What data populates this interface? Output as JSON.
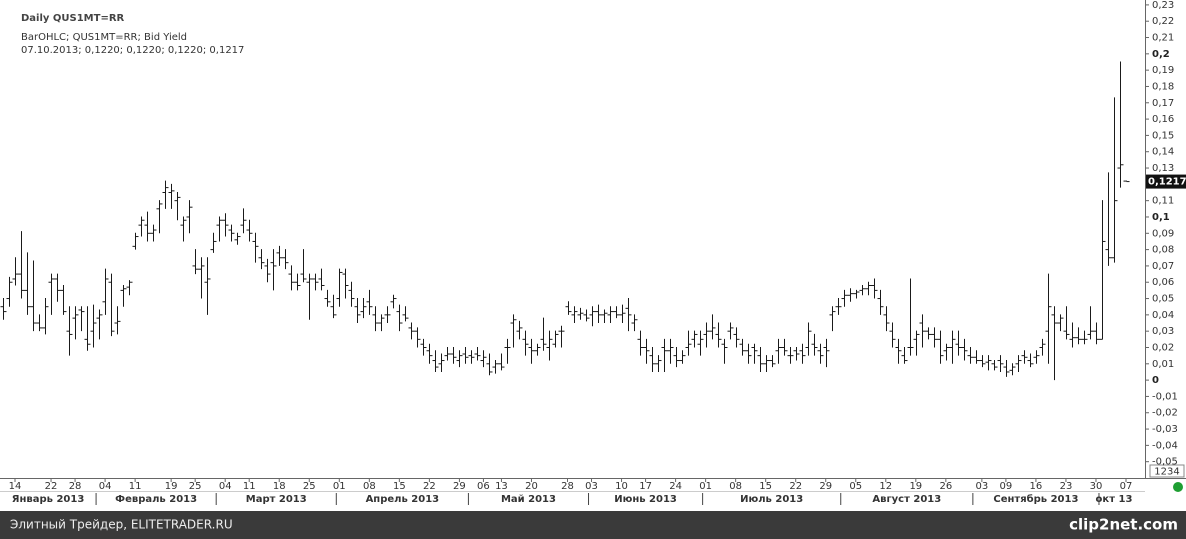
{
  "chart_data": {
    "type": "ohlc",
    "title": "Daily QUS1MT=RR",
    "subtitle": "BarOHLC; QUS1MT=RR; Bid Yield",
    "last_bar_text": "07.10.2013; 0,1220; 0,1220; 0,1220; 0,1217",
    "color": "#1a1a1a",
    "x": [
      "2013-01-10",
      "2013-01-11",
      "2013-01-14",
      "2013-01-15",
      "2013-01-16",
      "2013-01-17",
      "2013-01-18",
      "2013-01-21",
      "2013-01-22",
      "2013-01-23",
      "2013-01-24",
      "2013-01-25",
      "2013-01-28",
      "2013-01-29",
      "2013-01-30",
      "2013-01-31",
      "2013-02-01",
      "2013-02-04",
      "2013-02-05",
      "2013-02-06",
      "2013-02-07",
      "2013-02-08",
      "2013-02-11",
      "2013-02-12",
      "2013-02-13",
      "2013-02-14",
      "2013-02-15",
      "2013-02-18",
      "2013-02-19",
      "2013-02-20",
      "2013-02-21",
      "2013-02-22",
      "2013-02-25",
      "2013-02-26",
      "2013-02-27",
      "2013-02-28",
      "2013-03-01",
      "2013-03-04",
      "2013-03-05",
      "2013-03-06",
      "2013-03-07",
      "2013-03-11",
      "2013-03-12",
      "2013-03-13",
      "2013-03-14",
      "2013-03-15",
      "2013-03-18",
      "2013-03-19",
      "2013-03-20",
      "2013-03-21",
      "2013-03-22",
      "2013-03-25",
      "2013-03-26",
      "2013-03-27",
      "2013-03-28",
      "2013-03-29",
      "2013-04-01",
      "2013-04-02",
      "2013-04-03",
      "2013-04-04",
      "2013-04-05",
      "2013-04-08",
      "2013-04-09",
      "2013-04-10",
      "2013-04-11",
      "2013-04-12",
      "2013-04-15",
      "2013-04-16",
      "2013-04-17",
      "2013-04-18",
      "2013-04-19",
      "2013-04-22",
      "2013-04-23",
      "2013-04-24",
      "2013-04-25",
      "2013-04-26",
      "2013-04-29",
      "2013-04-30",
      "2013-05-02",
      "2013-05-03",
      "2013-05-06",
      "2013-05-07",
      "2013-05-08",
      "2013-05-13",
      "2013-05-14",
      "2013-05-15",
      "2013-05-16",
      "2013-05-17",
      "2013-05-20",
      "2013-05-21",
      "2013-05-22",
      "2013-05-23",
      "2013-05-24",
      "2013-05-27",
      "2013-05-28",
      "2013-05-29",
      "2013-05-30",
      "2013-05-31",
      "2013-06-03",
      "2013-06-04",
      "2013-06-05",
      "2013-06-06",
      "2013-06-07",
      "2013-06-10",
      "2013-06-11",
      "2013-06-13",
      "2013-06-14",
      "2013-06-17",
      "2013-06-18",
      "2013-06-19",
      "2013-06-20",
      "2013-06-21",
      "2013-06-24",
      "2013-06-25",
      "2013-06-26",
      "2013-06-27",
      "2013-06-28",
      "2013-07-01",
      "2013-07-02",
      "2013-07-03",
      "2013-07-04",
      "2013-07-05",
      "2013-07-08",
      "2013-07-09",
      "2013-07-10",
      "2013-07-11",
      "2013-07-12",
      "2013-07-15",
      "2013-07-16",
      "2013-07-17",
      "2013-07-18",
      "2013-07-19",
      "2013-07-22",
      "2013-07-23",
      "2013-07-24",
      "2013-07-25",
      "2013-07-26",
      "2013-07-29",
      "2013-07-30",
      "2013-07-31",
      "2013-08-01",
      "2013-08-02",
      "2013-08-05",
      "2013-08-06",
      "2013-08-07",
      "2013-08-08",
      "2013-08-09",
      "2013-08-12",
      "2013-08-13",
      "2013-08-14",
      "2013-08-15",
      "2013-08-16",
      "2013-08-19",
      "2013-08-20",
      "2013-08-21",
      "2013-08-22",
      "2013-08-23",
      "2013-08-26",
      "2013-08-27",
      "2013-08-28",
      "2013-08-29",
      "2013-08-30",
      "2013-09-02",
      "2013-09-03",
      "2013-09-04",
      "2013-09-05",
      "2013-09-06",
      "2013-09-09",
      "2013-09-10",
      "2013-09-11",
      "2013-09-12",
      "2013-09-13",
      "2013-09-16",
      "2013-09-17",
      "2013-09-18",
      "2013-09-19",
      "2013-09-20",
      "2013-09-23",
      "2013-09-24",
      "2013-09-25",
      "2013-09-26",
      "2013-09-27",
      "2013-09-30",
      "2013-10-01",
      "2013-10-02",
      "2013-10-03",
      "2013-10-04",
      "2013-10-07"
    ],
    "open": [
      0.045,
      0.05,
      0.062,
      0.065,
      0.055,
      0.045,
      0.035,
      0.032,
      0.06,
      0.062,
      0.055,
      0.03,
      0.038,
      0.043,
      0.025,
      0.03,
      0.038,
      0.048,
      0.06,
      0.035,
      0.055,
      0.057,
      0.082,
      0.095,
      0.095,
      0.09,
      0.105,
      0.115,
      0.115,
      0.11,
      0.095,
      0.1,
      0.07,
      0.068,
      0.06,
      0.08,
      0.095,
      0.098,
      0.092,
      0.086,
      0.095,
      0.092,
      0.085,
      0.075,
      0.07,
      0.072,
      0.078,
      0.075,
      0.065,
      0.06,
      0.065,
      0.06,
      0.062,
      0.062,
      0.05,
      0.045,
      0.05,
      0.065,
      0.055,
      0.045,
      0.042,
      0.048,
      0.04,
      0.035,
      0.04,
      0.048,
      0.042,
      0.04,
      0.032,
      0.03,
      0.022,
      0.018,
      0.012,
      0.01,
      0.015,
      0.016,
      0.012,
      0.016,
      0.015,
      0.016,
      0.012,
      0.01,
      0.008,
      0.01,
      0.02,
      0.035,
      0.03,
      0.025,
      0.02,
      0.018,
      0.025,
      0.02,
      0.022,
      0.03,
      0.045,
      0.04,
      0.04,
      0.04,
      0.04,
      0.042,
      0.04,
      0.04,
      0.042,
      0.04,
      0.044,
      0.035,
      0.025,
      0.02,
      0.015,
      0.01,
      0.02,
      0.018,
      0.015,
      0.012,
      0.02,
      0.025,
      0.022,
      0.028,
      0.03,
      0.028,
      0.022,
      0.03,
      0.028,
      0.022,
      0.018,
      0.02,
      0.015,
      0.01,
      0.012,
      0.018,
      0.02,
      0.015,
      0.018,
      0.018,
      0.02,
      0.022,
      0.018,
      0.02,
      0.04,
      0.045,
      0.05,
      0.052,
      0.053,
      0.055,
      0.056,
      0.058,
      0.05,
      0.04,
      0.03,
      0.02,
      0.015,
      0.02,
      0.025,
      0.035,
      0.03,
      0.028,
      0.025,
      0.018,
      0.02,
      0.022,
      0.02,
      0.015,
      0.014,
      0.012,
      0.011,
      0.01,
      0.012,
      0.008,
      0.006,
      0.01,
      0.015,
      0.012,
      0.014,
      0.02,
      0.03,
      0.04,
      0.035,
      0.03,
      0.025,
      0.026,
      0.025,
      0.028,
      0.03,
      0.025,
      0.08,
      0.075,
      0.13,
      0.122
    ],
    "high": [
      0.05,
      0.063,
      0.075,
      0.091,
      0.078,
      0.073,
      0.04,
      0.05,
      0.065,
      0.065,
      0.058,
      0.045,
      0.045,
      0.045,
      0.045,
      0.046,
      0.043,
      0.068,
      0.065,
      0.045,
      0.058,
      0.061,
      0.09,
      0.1,
      0.103,
      0.095,
      0.11,
      0.122,
      0.12,
      0.115,
      0.1,
      0.11,
      0.08,
      0.075,
      0.075,
      0.09,
      0.1,
      0.102,
      0.095,
      0.09,
      0.105,
      0.098,
      0.09,
      0.08,
      0.074,
      0.08,
      0.082,
      0.08,
      0.07,
      0.065,
      0.08,
      0.065,
      0.065,
      0.068,
      0.055,
      0.052,
      0.068,
      0.068,
      0.06,
      0.05,
      0.05,
      0.055,
      0.045,
      0.04,
      0.045,
      0.052,
      0.046,
      0.045,
      0.035,
      0.032,
      0.025,
      0.022,
      0.018,
      0.016,
      0.02,
      0.02,
      0.018,
      0.02,
      0.018,
      0.02,
      0.018,
      0.016,
      0.012,
      0.016,
      0.025,
      0.04,
      0.036,
      0.03,
      0.025,
      0.022,
      0.038,
      0.03,
      0.03,
      0.033,
      0.048,
      0.045,
      0.044,
      0.043,
      0.045,
      0.046,
      0.043,
      0.045,
      0.045,
      0.046,
      0.05,
      0.04,
      0.03,
      0.025,
      0.02,
      0.015,
      0.025,
      0.025,
      0.02,
      0.018,
      0.03,
      0.03,
      0.03,
      0.035,
      0.04,
      0.035,
      0.025,
      0.035,
      0.032,
      0.025,
      0.022,
      0.022,
      0.02,
      0.015,
      0.015,
      0.025,
      0.025,
      0.02,
      0.02,
      0.022,
      0.035,
      0.028,
      0.022,
      0.025,
      0.045,
      0.05,
      0.055,
      0.056,
      0.055,
      0.058,
      0.06,
      0.062,
      0.055,
      0.045,
      0.035,
      0.025,
      0.02,
      0.062,
      0.03,
      0.04,
      0.032,
      0.032,
      0.03,
      0.022,
      0.03,
      0.03,
      0.025,
      0.02,
      0.018,
      0.015,
      0.015,
      0.012,
      0.015,
      0.012,
      0.01,
      0.015,
      0.018,
      0.016,
      0.018,
      0.025,
      0.065,
      0.045,
      0.04,
      0.045,
      0.035,
      0.032,
      0.03,
      0.045,
      0.035,
      0.11,
      0.127,
      0.173,
      0.195,
      0.122
    ],
    "low": [
      0.037,
      0.045,
      0.058,
      0.05,
      0.04,
      0.03,
      0.03,
      0.028,
      0.04,
      0.048,
      0.04,
      0.015,
      0.025,
      0.03,
      0.018,
      0.02,
      0.025,
      0.04,
      0.027,
      0.028,
      0.045,
      0.052,
      0.08,
      0.088,
      0.085,
      0.085,
      0.09,
      0.105,
      0.105,
      0.098,
      0.085,
      0.09,
      0.065,
      0.05,
      0.04,
      0.078,
      0.085,
      0.088,
      0.085,
      0.083,
      0.09,
      0.085,
      0.072,
      0.068,
      0.06,
      0.055,
      0.07,
      0.068,
      0.055,
      0.055,
      0.06,
      0.037,
      0.055,
      0.055,
      0.045,
      0.038,
      0.045,
      0.05,
      0.045,
      0.035,
      0.038,
      0.04,
      0.03,
      0.03,
      0.035,
      0.044,
      0.03,
      0.036,
      0.025,
      0.02,
      0.015,
      0.01,
      0.005,
      0.005,
      0.012,
      0.01,
      0.008,
      0.01,
      0.01,
      0.012,
      0.008,
      0.003,
      0.004,
      0.006,
      0.01,
      0.02,
      0.025,
      0.015,
      0.01,
      0.015,
      0.018,
      0.012,
      0.02,
      0.02,
      0.04,
      0.035,
      0.037,
      0.036,
      0.033,
      0.035,
      0.035,
      0.035,
      0.038,
      0.035,
      0.03,
      0.03,
      0.015,
      0.01,
      0.005,
      0.005,
      0.005,
      0.01,
      0.008,
      0.01,
      0.015,
      0.02,
      0.015,
      0.02,
      0.025,
      0.02,
      0.01,
      0.025,
      0.02,
      0.015,
      0.01,
      0.01,
      0.005,
      0.005,
      0.008,
      0.01,
      0.015,
      0.01,
      0.012,
      0.01,
      0.015,
      0.015,
      0.01,
      0.008,
      0.03,
      0.04,
      0.045,
      0.048,
      0.05,
      0.052,
      0.052,
      0.05,
      0.04,
      0.03,
      0.02,
      0.01,
      0.01,
      0.015,
      0.015,
      0.02,
      0.025,
      0.02,
      0.01,
      0.012,
      0.01,
      0.015,
      0.012,
      0.01,
      0.01,
      0.008,
      0.006,
      0.006,
      0.005,
      0.002,
      0.003,
      0.005,
      0.01,
      0.008,
      0.01,
      0.015,
      0.01,
      0,
      0.03,
      0.025,
      0.02,
      0.022,
      0.022,
      0.025,
      0.022,
      0.025,
      0.07,
      0.072,
      0.118,
      0.122
    ],
    "close": [
      0.042,
      0.06,
      0.065,
      0.055,
      0.045,
      0.035,
      0.032,
      0.045,
      0.062,
      0.055,
      0.042,
      0.028,
      0.04,
      0.042,
      0.022,
      0.035,
      0.04,
      0.062,
      0.03,
      0.036,
      0.056,
      0.06,
      0.088,
      0.098,
      0.09,
      0.092,
      0.108,
      0.118,
      0.116,
      0.112,
      0.098,
      0.106,
      0.068,
      0.07,
      0.062,
      0.085,
      0.098,
      0.095,
      0.09,
      0.088,
      0.098,
      0.09,
      0.082,
      0.072,
      0.065,
      0.07,
      0.075,
      0.072,
      0.06,
      0.058,
      0.062,
      0.062,
      0.06,
      0.058,
      0.048,
      0.04,
      0.066,
      0.058,
      0.05,
      0.04,
      0.045,
      0.045,
      0.035,
      0.038,
      0.04,
      0.05,
      0.035,
      0.038,
      0.03,
      0.025,
      0.02,
      0.015,
      0.008,
      0.012,
      0.016,
      0.014,
      0.015,
      0.014,
      0.014,
      0.015,
      0.014,
      0.005,
      0.01,
      0.008,
      0.02,
      0.037,
      0.032,
      0.022,
      0.018,
      0.02,
      0.022,
      0.025,
      0.028,
      0.03,
      0.042,
      0.042,
      0.041,
      0.038,
      0.042,
      0.04,
      0.041,
      0.042,
      0.04,
      0.041,
      0.04,
      0.037,
      0.02,
      0.018,
      0.01,
      0.012,
      0.018,
      0.02,
      0.012,
      0.015,
      0.022,
      0.028,
      0.025,
      0.03,
      0.032,
      0.025,
      0.02,
      0.032,
      0.025,
      0.018,
      0.015,
      0.018,
      0.01,
      0.012,
      0.01,
      0.02,
      0.018,
      0.015,
      0.016,
      0.015,
      0.03,
      0.02,
      0.015,
      0.018,
      0.042,
      0.045,
      0.052,
      0.053,
      0.054,
      0.056,
      0.058,
      0.055,
      0.045,
      0.035,
      0.025,
      0.018,
      0.012,
      0.02,
      0.028,
      0.03,
      0.028,
      0.025,
      0.015,
      0.02,
      0.025,
      0.02,
      0.018,
      0.014,
      0.012,
      0.01,
      0.012,
      0.008,
      0.01,
      0.005,
      0.008,
      0.012,
      0.014,
      0.01,
      0.015,
      0.022,
      0.045,
      0.035,
      0.038,
      0.028,
      0.026,
      0.025,
      0.025,
      0.03,
      0.025,
      0.085,
      0.075,
      0.11,
      0.132,
      0.1217
    ],
    "ylim": [
      -0.06,
      0.233
    ],
    "yticks": [
      {
        "value": 0.23,
        "label": "0,23"
      },
      {
        "value": 0.22,
        "label": "0,22"
      },
      {
        "value": 0.21,
        "label": "0,21"
      },
      {
        "value": 0.2,
        "label": "0,2"
      },
      {
        "value": 0.19,
        "label": "0,19"
      },
      {
        "value": 0.18,
        "label": "0,18"
      },
      {
        "value": 0.17,
        "label": "0,17"
      },
      {
        "value": 0.16,
        "label": "0,16"
      },
      {
        "value": 0.15,
        "label": "0,15"
      },
      {
        "value": 0.14,
        "label": "0,14"
      },
      {
        "value": 0.13,
        "label": "0,13"
      },
      {
        "value": 0.11,
        "label": "0,11"
      },
      {
        "value": 0.1,
        "label": "0,1"
      },
      {
        "value": 0.09,
        "label": "0,09"
      },
      {
        "value": 0.08,
        "label": "0,08"
      },
      {
        "value": 0.07,
        "label": "0,07"
      },
      {
        "value": 0.06,
        "label": "0,06"
      },
      {
        "value": 0.05,
        "label": "0,05"
      },
      {
        "value": 0.04,
        "label": "0,04"
      },
      {
        "value": 0.03,
        "label": "0,03"
      },
      {
        "value": 0.02,
        "label": "0,02"
      },
      {
        "value": 0.01,
        "label": "0,01"
      },
      0,
      {
        "value": -0.01,
        "label": "-0,01"
      },
      {
        "value": -0.02,
        "label": "-0,02"
      },
      {
        "value": -0.03,
        "label": "-0,03"
      },
      {
        "value": -0.04,
        "label": "-0,04"
      },
      {
        "value": -0.05,
        "label": "-0,05"
      }
    ],
    "bold_ticks": [
      0.2,
      0.1,
      0
    ],
    "last_value": {
      "value": 0.1217,
      "label": "0,1217"
    },
    "xticks": [
      {
        "value": "2013-01-14",
        "label": "14"
      },
      {
        "value": "2013-01-22",
        "label": "22"
      },
      {
        "value": "2013-01-28",
        "label": "28"
      },
      {
        "value": "2013-02-04",
        "label": "04"
      },
      {
        "value": "2013-02-11",
        "label": "11"
      },
      {
        "value": "2013-02-19",
        "label": "19"
      },
      {
        "value": "2013-02-25",
        "label": "25"
      },
      {
        "value": "2013-03-04",
        "label": "04"
      },
      {
        "value": "2013-03-11",
        "label": "11"
      },
      {
        "value": "2013-03-18",
        "label": "18"
      },
      {
        "value": "2013-03-25",
        "label": "25"
      },
      {
        "value": "2013-04-01",
        "label": "01"
      },
      {
        "value": "2013-04-08",
        "label": "08"
      },
      {
        "value": "2013-04-15",
        "label": "15"
      },
      {
        "value": "2013-04-22",
        "label": "22"
      },
      {
        "value": "2013-04-29",
        "label": "29"
      },
      {
        "value": "2013-05-06",
        "label": "06"
      },
      {
        "value": "2013-05-13",
        "label": "13"
      },
      {
        "value": "2013-05-20",
        "label": "20"
      },
      {
        "value": "2013-05-28",
        "label": "28"
      },
      {
        "value": "2013-06-03",
        "label": "03"
      },
      {
        "value": "2013-06-10",
        "label": "10"
      },
      {
        "value": "2013-06-17",
        "label": "17"
      },
      {
        "value": "2013-06-24",
        "label": "24"
      },
      {
        "value": "2013-07-01",
        "label": "01"
      },
      {
        "value": "2013-07-08",
        "label": "08"
      },
      {
        "value": "2013-07-15",
        "label": "15"
      },
      {
        "value": "2013-07-22",
        "label": "22"
      },
      {
        "value": "2013-07-29",
        "label": "29"
      },
      {
        "value": "2013-08-05",
        "label": "05"
      },
      {
        "value": "2013-08-12",
        "label": "12"
      },
      {
        "value": "2013-08-19",
        "label": "19"
      },
      {
        "value": "2013-08-26",
        "label": "26"
      },
      {
        "value": "2013-09-03",
        "label": "03"
      },
      {
        "value": "2013-09-09",
        "label": "09"
      },
      {
        "value": "2013-09-16",
        "label": "16"
      },
      {
        "value": "2013-09-23",
        "label": "23"
      },
      {
        "value": "2013-09-30",
        "label": "30"
      },
      {
        "value": "2013-10-07",
        "label": "07"
      }
    ],
    "month_labels": [
      {
        "value": "2013-01",
        "label": "Январь 2013"
      },
      {
        "value": "2013-02",
        "label": "Февраль 2013"
      },
      {
        "value": "2013-03",
        "label": "Март 2013"
      },
      {
        "value": "2013-04",
        "label": "Апрель 2013"
      },
      {
        "value": "2013-05",
        "label": "Май 2013"
      },
      {
        "value": "2013-06",
        "label": "Июнь 2013"
      },
      {
        "value": "2013-07",
        "label": "Июль 2013"
      },
      {
        "value": "2013-08",
        "label": "Август 2013"
      },
      {
        "value": "2013-09",
        "label": "Сентябрь 2013"
      },
      {
        "value": "2013-10",
        "label": "окт 13"
      }
    ],
    "scale_box": "1234"
  },
  "footer": {
    "source": "Элитный Трейдер, ELITETRADER.RU",
    "logo": "clip2net.com"
  }
}
